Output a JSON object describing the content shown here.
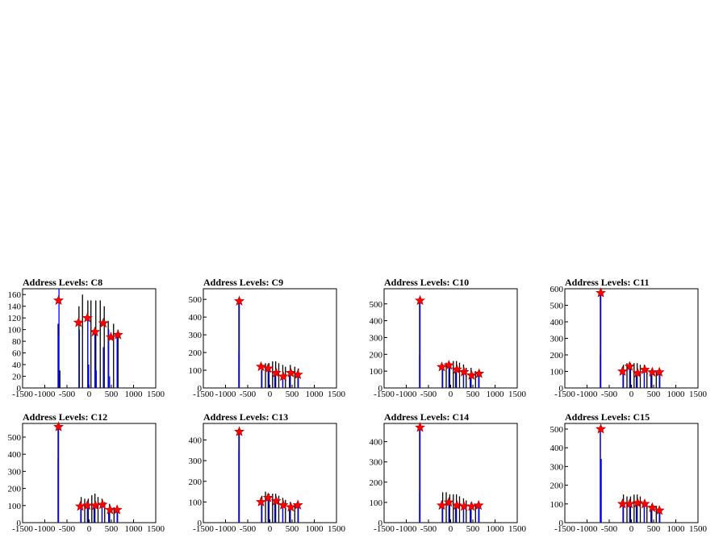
{
  "chart_data": [
    {
      "type": "bar",
      "title": "Address Levels: C8",
      "xlim": [
        -1500,
        1500
      ],
      "ylim": [
        0,
        170
      ],
      "xticks": [
        -1500,
        -1000,
        -500,
        0,
        500,
        1000,
        1500
      ],
      "xtick_labels": [
        "-1500",
        "-1000",
        "-500",
        "0",
        "500",
        "1000",
        "1500"
      ],
      "yticks": [
        0,
        20,
        40,
        60,
        80,
        100,
        120,
        140,
        160
      ],
      "ytick_labels": [
        "0",
        "20",
        "40",
        "60",
        "80",
        "100",
        "120",
        "140",
        "160"
      ],
      "series": [
        {
          "color": "#000000",
          "x": [
            -700,
            -660,
            -230,
            -150,
            -30,
            40,
            150,
            250,
            340,
            430,
            550,
            650
          ],
          "values": [
            110,
            30,
            140,
            160,
            150,
            150,
            150,
            150,
            140,
            115,
            110,
            100
          ]
        },
        {
          "color": "#0000ff",
          "x": [
            -690,
            -680,
            -220,
            -30,
            -10,
            130,
            160,
            320,
            440,
            460,
            630
          ],
          "values": [
            90,
            170,
            100,
            120,
            40,
            100,
            30,
            70,
            100,
            20,
            90
          ]
        }
      ],
      "peaks": {
        "color": "#ff0000",
        "x": [
          -690,
          -240,
          -40,
          130,
          320,
          490,
          650
        ],
        "y": [
          150,
          112,
          120,
          96,
          111,
          87,
          91
        ]
      }
    },
    {
      "type": "bar",
      "title": "Address Levels: C9",
      "xlim": [
        -1500,
        1500
      ],
      "ylim": [
        0,
        560
      ],
      "xticks": [
        -1500,
        -1000,
        -500,
        0,
        500,
        1000,
        1500
      ],
      "xtick_labels": [
        "-1500",
        "-1000",
        "-500",
        "0",
        "500",
        "1000",
        "1500"
      ],
      "yticks": [
        0,
        100,
        200,
        300,
        400,
        500
      ],
      "ytick_labels": [
        "0",
        "100",
        "200",
        "300",
        "400",
        "500"
      ],
      "series": [
        {
          "color": "#000000",
          "x": [
            -700,
            -180,
            -100,
            -20,
            60,
            130,
            200,
            290,
            350,
            460,
            560,
            640
          ],
          "values": [
            480,
            130,
            140,
            140,
            150,
            150,
            140,
            130,
            120,
            130,
            120,
            110
          ]
        },
        {
          "color": "#0000ff",
          "x": [
            -700,
            -690,
            -190,
            -40,
            110,
            290,
            440,
            630
          ],
          "values": [
            200,
            480,
            100,
            120,
            90,
            70,
            90,
            80
          ]
        }
      ],
      "peaks": {
        "color": "#ff0000",
        "x": [
          -690,
          -200,
          -40,
          140,
          300,
          470,
          630
        ],
        "y": [
          490,
          120,
          110,
          85,
          65,
          85,
          75
        ]
      }
    },
    {
      "type": "bar",
      "title": "Address Levels: C10",
      "xlim": [
        -1500,
        1500
      ],
      "ylim": [
        0,
        590
      ],
      "xticks": [
        -1500,
        -1000,
        -500,
        0,
        500,
        1000,
        1500
      ],
      "xtick_labels": [
        "-1500",
        "-1000",
        "-500",
        "0",
        "500",
        "1000",
        "1500"
      ],
      "yticks": [
        0,
        100,
        200,
        300,
        400,
        500
      ],
      "ytick_labels": [
        "0",
        "100",
        "200",
        "300",
        "400",
        "500"
      ],
      "series": [
        {
          "color": "#000000",
          "x": [
            -700,
            -180,
            -100,
            -20,
            60,
            130,
            200,
            290,
            350,
            460,
            560,
            640
          ],
          "values": [
            510,
            140,
            150,
            150,
            160,
            160,
            150,
            140,
            120,
            120,
            100,
            90
          ]
        },
        {
          "color": "#0000ff",
          "x": [
            -700,
            -690,
            -190,
            -40,
            110,
            290,
            440,
            630
          ],
          "values": [
            200,
            520,
            110,
            130,
            100,
            80,
            70,
            80
          ]
        }
      ],
      "peaks": {
        "color": "#ff0000",
        "x": [
          -690,
          -200,
          -40,
          140,
          300,
          470,
          640
        ],
        "y": [
          520,
          125,
          135,
          110,
          95,
          75,
          85
        ]
      }
    },
    {
      "type": "bar",
      "title": "Address Levels: C11",
      "xlim": [
        -1500,
        1500
      ],
      "ylim": [
        0,
        600
      ],
      "xticks": [
        -1500,
        -1000,
        -500,
        0,
        500,
        1000,
        1500
      ],
      "xtick_labels": [
        "-1500",
        "-1000",
        "-500",
        "0",
        "500",
        "1000",
        "1500"
      ],
      "yticks": [
        0,
        100,
        200,
        300,
        400,
        500,
        600
      ],
      "ytick_labels": [
        "0",
        "100",
        "200",
        "300",
        "400",
        "500",
        "600"
      ],
      "series": [
        {
          "color": "#000000",
          "x": [
            -700,
            -180,
            -100,
            -20,
            60,
            130,
            200,
            290,
            350,
            460,
            560,
            640
          ],
          "values": [
            560,
            140,
            150,
            150,
            150,
            150,
            140,
            140,
            120,
            110,
            100,
            100
          ]
        },
        {
          "color": "#0000ff",
          "x": [
            -700,
            -690,
            -190,
            -40,
            110,
            290,
            440,
            630
          ],
          "values": [
            200,
            580,
            100,
            130,
            90,
            90,
            100,
            90
          ]
        }
      ],
      "peaks": {
        "color": "#ff0000",
        "x": [
          -690,
          -200,
          -40,
          140,
          300,
          470,
          630
        ],
        "y": [
          575,
          100,
          130,
          90,
          110,
          95,
          95
        ]
      }
    },
    {
      "type": "bar",
      "title": "Address Levels: C12",
      "xlim": [
        -1500,
        1500
      ],
      "ylim": [
        0,
        580
      ],
      "xticks": [
        -1500,
        -1000,
        -500,
        0,
        500,
        1000,
        1500
      ],
      "xtick_labels": [
        "-1500",
        "-1000",
        "-500",
        "0",
        "500",
        "1000",
        "1500"
      ],
      "yticks": [
        0,
        100,
        200,
        300,
        400,
        500
      ],
      "ytick_labels": [
        "0",
        "100",
        "200",
        "300",
        "400",
        "500"
      ],
      "series": [
        {
          "color": "#000000",
          "x": [
            -700,
            -180,
            -100,
            -20,
            60,
            130,
            200,
            290,
            350,
            460,
            560,
            640
          ],
          "values": [
            550,
            150,
            140,
            140,
            160,
            170,
            150,
            140,
            120,
            110,
            90,
            80
          ]
        },
        {
          "color": "#0000ff",
          "x": [
            -700,
            -690,
            -190,
            -40,
            110,
            290,
            440,
            630
          ],
          "values": [
            380,
            560,
            100,
            100,
            110,
            110,
            80,
            70
          ]
        }
      ],
      "peaks": {
        "color": "#ff0000",
        "x": [
          -690,
          -200,
          -40,
          140,
          300,
          470,
          630
        ],
        "y": [
          560,
          95,
          100,
          100,
          105,
          75,
          75
        ]
      }
    },
    {
      "type": "bar",
      "title": "Address Levels: C13",
      "xlim": [
        -1500,
        1500
      ],
      "ylim": [
        0,
        480
      ],
      "xticks": [
        -1500,
        -1000,
        -500,
        0,
        500,
        1000,
        1500
      ],
      "xtick_labels": [
        "-1500",
        "-1000",
        "-500",
        "0",
        "500",
        "1000",
        "1500"
      ],
      "yticks": [
        0,
        100,
        200,
        300,
        400
      ],
      "ytick_labels": [
        "0",
        "100",
        "200",
        "300",
        "400"
      ],
      "series": [
        {
          "color": "#000000",
          "x": [
            -700,
            -180,
            -100,
            -20,
            60,
            130,
            200,
            290,
            350,
            460,
            560,
            640
          ],
          "values": [
            430,
            130,
            150,
            140,
            140,
            140,
            130,
            120,
            110,
            100,
            90,
            90
          ]
        },
        {
          "color": "#0000ff",
          "x": [
            -700,
            -690,
            -190,
            -40,
            110,
            290,
            440,
            630
          ],
          "values": [
            350,
            440,
            100,
            120,
            100,
            80,
            70,
            90
          ]
        }
      ],
      "peaks": {
        "color": "#ff0000",
        "x": [
          -690,
          -200,
          -40,
          140,
          300,
          470,
          630
        ],
        "y": [
          440,
          100,
          120,
          105,
          85,
          75,
          85
        ]
      }
    },
    {
      "type": "bar",
      "title": "Address Levels: C14",
      "xlim": [
        -1500,
        1500
      ],
      "ylim": [
        0,
        490
      ],
      "xticks": [
        -1500,
        -1000,
        -500,
        0,
        500,
        1000,
        1500
      ],
      "xtick_labels": [
        "-1500",
        "-1000",
        "-500",
        "0",
        "500",
        "1000",
        "1500"
      ],
      "yticks": [
        0,
        100,
        200,
        300,
        400
      ],
      "ytick_labels": [
        "0",
        "100",
        "200",
        "300",
        "400"
      ],
      "series": [
        {
          "color": "#000000",
          "x": [
            -700,
            -180,
            -100,
            -20,
            60,
            130,
            200,
            290,
            350,
            460,
            560,
            640
          ],
          "values": [
            460,
            150,
            150,
            140,
            140,
            140,
            130,
            120,
            110,
            100,
            90,
            90
          ]
        },
        {
          "color": "#0000ff",
          "x": [
            -700,
            -690,
            -190,
            -40,
            110,
            290,
            440,
            630
          ],
          "values": [
            150,
            470,
            90,
            110,
            90,
            80,
            80,
            80
          ]
        }
      ],
      "peaks": {
        "color": "#ff0000",
        "x": [
          -690,
          -200,
          -40,
          140,
          300,
          470,
          630
        ],
        "y": [
          470,
          85,
          100,
          85,
          80,
          80,
          85
        ]
      }
    },
    {
      "type": "bar",
      "title": "Address Levels: C15",
      "xlim": [
        -1500,
        1500
      ],
      "ylim": [
        0,
        530
      ],
      "xticks": [
        -1500,
        -1000,
        -500,
        0,
        500,
        1000,
        1500
      ],
      "xtick_labels": [
        "-1500",
        "-1000",
        "-500",
        "0",
        "500",
        "1000",
        "1500"
      ],
      "yticks": [
        0,
        100,
        200,
        300,
        400,
        500
      ],
      "ytick_labels": [
        "0",
        "100",
        "200",
        "300",
        "400",
        "500"
      ],
      "series": [
        {
          "color": "#000000",
          "x": [
            -700,
            -180,
            -100,
            -20,
            60,
            130,
            200,
            290,
            350,
            460,
            560,
            640
          ],
          "values": [
            490,
            150,
            140,
            140,
            150,
            150,
            140,
            120,
            110,
            100,
            90,
            80
          ]
        },
        {
          "color": "#0000ff",
          "x": [
            -700,
            -680,
            -190,
            -40,
            110,
            290,
            440,
            630
          ],
          "values": [
            500,
            340,
            100,
            100,
            100,
            90,
            80,
            60
          ]
        }
      ],
      "peaks": {
        "color": "#ff0000",
        "x": [
          -690,
          -200,
          -40,
          140,
          300,
          470,
          630
        ],
        "y": [
          500,
          100,
          100,
          105,
          100,
          80,
          65
        ]
      }
    }
  ]
}
